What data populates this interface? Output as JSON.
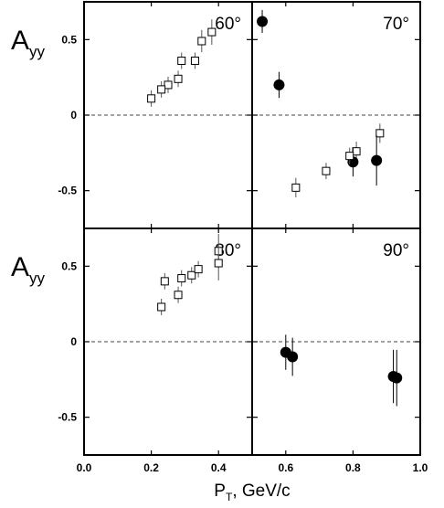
{
  "chart_data": {
    "type": "scatter",
    "grid": false,
    "ylabel_main": "A",
    "ylabel_sub": "yy",
    "xlabel_main": "P",
    "xlabel_sub": "T",
    "xlabel_rest": ", GeV/c",
    "xlim": [
      0.0,
      1.0
    ],
    "ylim": [
      -0.75,
      0.75
    ],
    "x_ticks": [
      0.0,
      0.2,
      0.4,
      0.6,
      0.8,
      1.0
    ],
    "x_tick_labels": [
      "0.0",
      "0.2",
      "0.4",
      "0.6",
      "0.8",
      "1.0"
    ],
    "y_ticks": [
      0.5,
      0,
      -0.5
    ],
    "y_tick_labels": [
      "0.5",
      "0",
      "-0.5"
    ],
    "reference_line": 0,
    "panels": [
      {
        "angle_label": "60°",
        "open_squares": [
          {
            "x": 0.2,
            "y": 0.11,
            "err": 0.03
          },
          {
            "x": 0.25,
            "y": 0.2,
            "err": 0.03
          },
          {
            "x": 0.29,
            "y": 0.36,
            "err": 0.03
          },
          {
            "x": 0.35,
            "y": 0.49,
            "err": 0.05
          },
          {
            "x": 0.63,
            "y": -0.48,
            "err": 0.04
          },
          {
            "x": 0.72,
            "y": -0.37,
            "err": 0.03
          },
          {
            "x": 0.81,
            "y": -0.24,
            "err": 0.04
          }
        ],
        "filled_circles": [
          {
            "x": 0.53,
            "y": 0.62,
            "err": 0.04
          },
          {
            "x": 0.8,
            "y": -0.31,
            "err": 0.06
          }
        ]
      },
      {
        "angle_label": "70°",
        "open_squares": [
          {
            "x": 0.23,
            "y": 0.17,
            "err": 0.03
          },
          {
            "x": 0.28,
            "y": 0.24,
            "err": 0.03
          },
          {
            "x": 0.33,
            "y": 0.36,
            "err": 0.03
          },
          {
            "x": 0.38,
            "y": 0.55,
            "err": 0.06
          },
          {
            "x": 0.79,
            "y": -0.27,
            "err": 0.03
          },
          {
            "x": 0.88,
            "y": -0.12,
            "err": 0.04
          }
        ],
        "filled_circles": [
          {
            "x": 0.58,
            "y": 0.2,
            "err": 0.05
          },
          {
            "x": 0.87,
            "y": -0.3,
            "err": 0.13
          }
        ]
      },
      {
        "angle_label": "80°",
        "open_squares": [
          {
            "x": 0.23,
            "y": 0.23,
            "err": 0.03
          },
          {
            "x": 0.28,
            "y": 0.31,
            "err": 0.03
          },
          {
            "x": 0.32,
            "y": 0.44,
            "err": 0.03
          },
          {
            "x": 0.4,
            "y": 0.6,
            "err": 0.09
          }
        ],
        "filled_circles": [
          {
            "x": 0.6,
            "y": -0.07,
            "err": 0.08
          },
          {
            "x": 0.92,
            "y": -0.23,
            "err": 0.14
          }
        ]
      },
      {
        "angle_label": "90°",
        "open_squares": [
          {
            "x": 0.24,
            "y": 0.4,
            "err": 0.03
          },
          {
            "x": 0.29,
            "y": 0.42,
            "err": 0.03
          },
          {
            "x": 0.34,
            "y": 0.48,
            "err": 0.03
          },
          {
            "x": 0.4,
            "y": 0.52,
            "err": 0.09
          }
        ],
        "filled_circles": [
          {
            "x": 0.62,
            "y": -0.1,
            "err": 0.09
          },
          {
            "x": 0.93,
            "y": -0.24,
            "err": 0.15
          }
        ]
      }
    ]
  }
}
